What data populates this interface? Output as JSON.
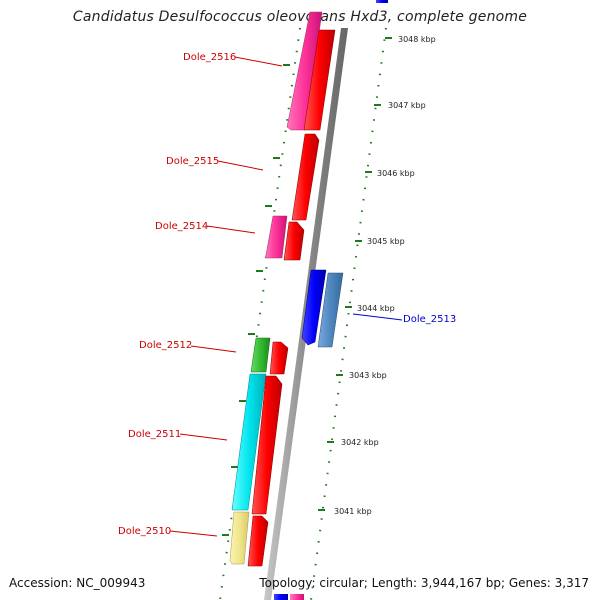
{
  "title": "Candidatus Desulfococcus oleovorans Hxd3, complete genome",
  "footer": {
    "accession": "Accession: NC_009943",
    "summary": "Topology: circular; Length: 3,944,167 bp; Genes: 3,317"
  },
  "kbp_labels": [
    "3048 kbp",
    "3047 kbp",
    "3046 kbp",
    "3045 kbp",
    "3044 kbp",
    "3043 kbp",
    "3042 kbp",
    "3041 kbp"
  ],
  "gene_labels": [
    "Dole_2516",
    "Dole_2515",
    "Dole_2514",
    "Dole_2513",
    "Dole_2512",
    "Dole_2511",
    "Dole_2510"
  ],
  "colors": {
    "backbone": "#8c8c8c",
    "tick": "#1f7a1f",
    "forward_cds": "#ff0000",
    "reverse_cds": "#0000ff",
    "pink": "#ff3399",
    "cyan": "#00e5ee",
    "green": "#33bb33",
    "khaki": "#f0e68c",
    "steel_blue": "#4f87c0",
    "label_red": "#cc0000",
    "label_blue": "#0000cc"
  }
}
